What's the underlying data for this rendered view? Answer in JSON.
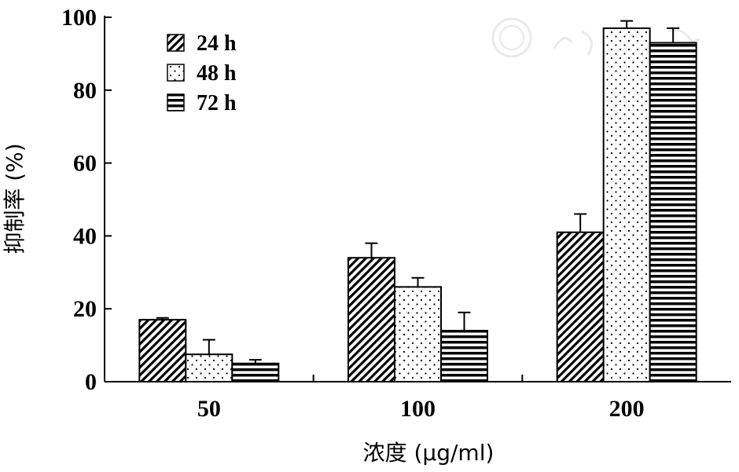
{
  "chart_data": {
    "type": "bar",
    "title": "",
    "xlabel": "浓度 (μg/ml)",
    "ylabel": "抑制率 (%)",
    "categories": [
      "50",
      "100",
      "200"
    ],
    "ylim": [
      0,
      100
    ],
    "yticks": [
      0,
      20,
      40,
      60,
      80,
      100
    ],
    "grid": false,
    "legend_position": "top-left",
    "series": [
      {
        "name": "24 h",
        "values": [
          17,
          34,
          41
        ],
        "errors": [
          0.5,
          4,
          5
        ],
        "pattern": "diagonal-hatch"
      },
      {
        "name": "48 h",
        "values": [
          7.5,
          26,
          97
        ],
        "errors": [
          4,
          2.5,
          2
        ],
        "pattern": "dots"
      },
      {
        "name": "72 h",
        "values": [
          5,
          14,
          93
        ],
        "errors": [
          1,
          5,
          4
        ],
        "pattern": "horizontal-lines"
      }
    ]
  }
}
